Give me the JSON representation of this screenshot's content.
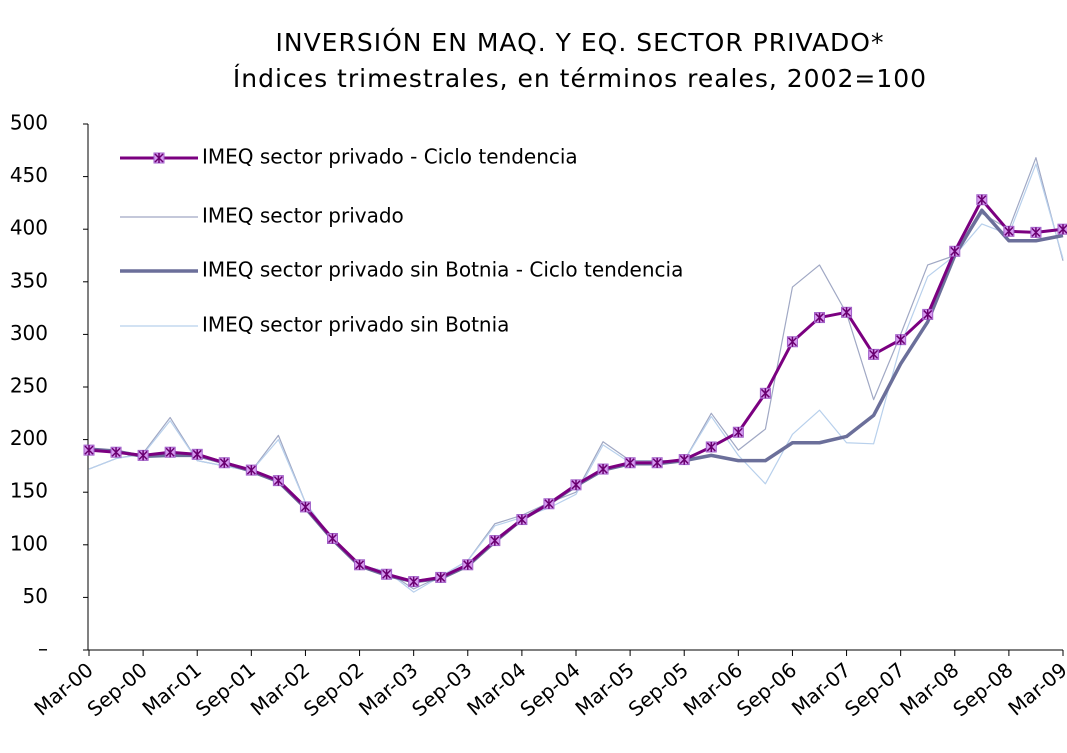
{
  "chart_data": {
    "type": "line",
    "title": "INVERSIÓN EN MAQ. Y EQ. SECTOR PRIVADO*",
    "subtitle": "Índices trimestrales, en términos reales, 2002=100",
    "categories": [
      "Mar-00",
      null,
      "Sep-00",
      null,
      "Mar-01",
      null,
      "Sep-01",
      null,
      "Mar-02",
      null,
      "Sep-02",
      null,
      "Mar-03",
      null,
      "Sep-03",
      null,
      "Mar-04",
      null,
      "Sep-04",
      null,
      "Mar-05",
      null,
      "Sep-05",
      null,
      "Mar-06",
      null,
      "Sep-06",
      null,
      "Mar-07",
      null,
      "Sep-07",
      null,
      "Mar-08",
      null,
      "Sep-08",
      null,
      "Mar-09"
    ],
    "series": [
      {
        "name": "IMEQ sector privado - Ciclo tendencia",
        "color": "#7b0080",
        "values": [
          190,
          188,
          185,
          188,
          186,
          178,
          171,
          161,
          136,
          106,
          81,
          72,
          65,
          69,
          81,
          104,
          124,
          139,
          157,
          172,
          178,
          178,
          181,
          193,
          207,
          244,
          293,
          316,
          321,
          281,
          295,
          319,
          379,
          428,
          398,
          397,
          400
        ]
      },
      {
        "name": "IMEQ sector privado",
        "color": "#a0a8c4",
        "values": [
          172,
          182,
          187,
          221,
          180,
          175,
          170,
          204,
          140,
          105,
          80,
          75,
          58,
          70,
          85,
          120,
          128,
          140,
          150,
          198,
          180,
          180,
          180,
          225,
          190,
          210,
          345,
          366,
          320,
          238,
          300,
          366,
          375,
          415,
          400,
          468,
          370
        ]
      },
      {
        "name": "IMEQ sector privado sin Botnia - Ciclo tendencia",
        "color": "#6b6f9a",
        "values": [
          191,
          189,
          184,
          185,
          185,
          178,
          170,
          160,
          135,
          105,
          80,
          71,
          65,
          68,
          80,
          103,
          124,
          139,
          156,
          171,
          177,
          177,
          180,
          185,
          180,
          180,
          197,
          197,
          203,
          223,
          272,
          312,
          375,
          418,
          389,
          389,
          394
        ]
      },
      {
        "name": "IMEQ sector privado sin Botnia",
        "color": "#b8d0ec",
        "values": [
          172,
          182,
          186,
          218,
          180,
          175,
          170,
          200,
          140,
          105,
          80,
          75,
          55,
          70,
          85,
          118,
          126,
          135,
          148,
          195,
          178,
          178,
          180,
          222,
          185,
          158,
          205,
          228,
          197,
          196,
          290,
          355,
          375,
          405,
          395,
          462,
          372
        ]
      }
    ],
    "ylim": [
      0,
      500
    ],
    "yticks": [
      {
        "value": 0,
        "label": "–"
      },
      50,
      100,
      150,
      200,
      250,
      300,
      350,
      400,
      450,
      500
    ]
  }
}
